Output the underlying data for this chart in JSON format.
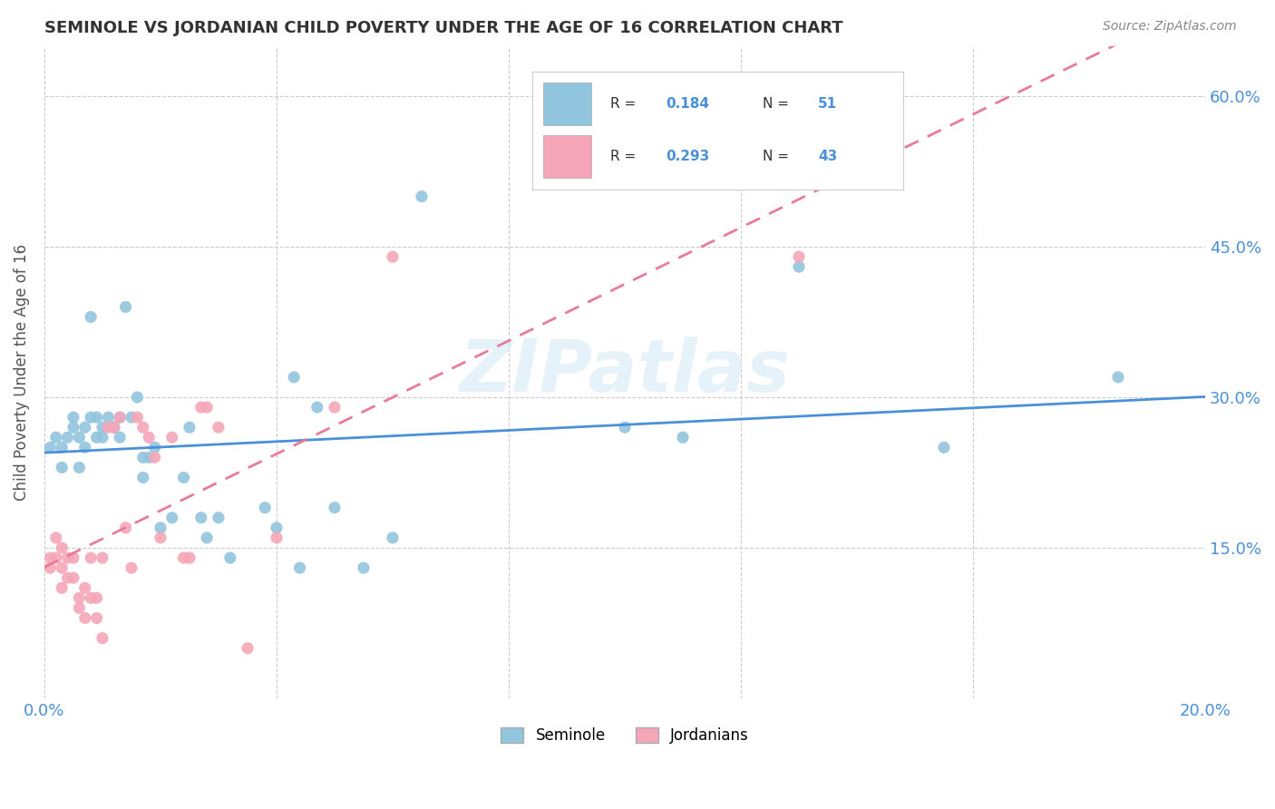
{
  "title": "SEMINOLE VS JORDANIAN CHILD POVERTY UNDER THE AGE OF 16 CORRELATION CHART",
  "source": "Source: ZipAtlas.com",
  "ylabel": "Child Poverty Under the Age of 16",
  "xlim": [
    0.0,
    0.2
  ],
  "ylim": [
    0.0,
    0.65
  ],
  "yticks": [
    0.15,
    0.3,
    0.45,
    0.6
  ],
  "ytick_labels": [
    "15.0%",
    "30.0%",
    "45.0%",
    "60.0%"
  ],
  "xtick_all": [
    0.0,
    0.04,
    0.08,
    0.12,
    0.16,
    0.2
  ],
  "seminole_R": "0.184",
  "seminole_N": "51",
  "jordanian_R": "0.293",
  "jordanian_N": "43",
  "seminole_color": "#92c5de",
  "jordanian_color": "#f4a6b8",
  "trend_seminole_color": "#4a90d9",
  "trend_jordanian_color": "#e87a9a",
  "background_color": "#ffffff",
  "watermark": "ZIPatlas",
  "grid_color": "#cccccc",
  "seminole_x": [
    0.001,
    0.002,
    0.003,
    0.003,
    0.004,
    0.005,
    0.005,
    0.006,
    0.006,
    0.007,
    0.007,
    0.008,
    0.008,
    0.009,
    0.009,
    0.01,
    0.01,
    0.011,
    0.012,
    0.012,
    0.013,
    0.013,
    0.014,
    0.015,
    0.016,
    0.017,
    0.017,
    0.018,
    0.019,
    0.02,
    0.022,
    0.024,
    0.025,
    0.027,
    0.028,
    0.03,
    0.032,
    0.038,
    0.04,
    0.043,
    0.044,
    0.047,
    0.05,
    0.055,
    0.06,
    0.065,
    0.1,
    0.11,
    0.13,
    0.155,
    0.185
  ],
  "seminole_y": [
    0.25,
    0.26,
    0.25,
    0.23,
    0.26,
    0.28,
    0.27,
    0.26,
    0.23,
    0.27,
    0.25,
    0.28,
    0.38,
    0.28,
    0.26,
    0.26,
    0.27,
    0.28,
    0.27,
    0.27,
    0.28,
    0.26,
    0.39,
    0.28,
    0.3,
    0.24,
    0.22,
    0.24,
    0.25,
    0.17,
    0.18,
    0.22,
    0.27,
    0.18,
    0.16,
    0.18,
    0.14,
    0.19,
    0.17,
    0.32,
    0.13,
    0.29,
    0.19,
    0.13,
    0.16,
    0.5,
    0.27,
    0.26,
    0.43,
    0.25,
    0.32
  ],
  "jordanian_x": [
    0.001,
    0.001,
    0.002,
    0.002,
    0.003,
    0.003,
    0.003,
    0.004,
    0.004,
    0.005,
    0.005,
    0.006,
    0.006,
    0.007,
    0.007,
    0.008,
    0.008,
    0.009,
    0.009,
    0.01,
    0.01,
    0.011,
    0.012,
    0.013,
    0.014,
    0.015,
    0.016,
    0.017,
    0.018,
    0.019,
    0.02,
    0.022,
    0.024,
    0.025,
    0.027,
    0.028,
    0.03,
    0.035,
    0.04,
    0.05,
    0.06,
    0.13,
    0.14
  ],
  "jordanian_y": [
    0.14,
    0.13,
    0.16,
    0.14,
    0.15,
    0.13,
    0.11,
    0.14,
    0.12,
    0.14,
    0.12,
    0.1,
    0.09,
    0.11,
    0.08,
    0.1,
    0.14,
    0.1,
    0.08,
    0.06,
    0.14,
    0.27,
    0.27,
    0.28,
    0.17,
    0.13,
    0.28,
    0.27,
    0.26,
    0.24,
    0.16,
    0.26,
    0.14,
    0.14,
    0.29,
    0.29,
    0.27,
    0.05,
    0.16,
    0.29,
    0.44,
    0.44,
    0.52
  ]
}
